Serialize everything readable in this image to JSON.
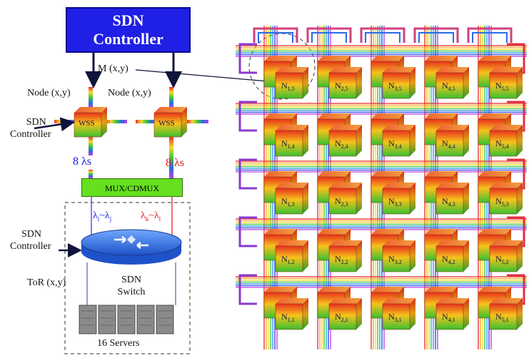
{
  "controller": {
    "line1": "SDN",
    "line2": "Controller"
  },
  "m_label": "M (x,y)",
  "node_label_left": "Node (x,y)",
  "node_label_right": "Node (x,y)",
  "side_controller": {
    "line1": "SDN",
    "line2": "Controller"
  },
  "wss_label": "WSS",
  "lambda_count_left": "8 λs",
  "lambda_count_right": "8 λs",
  "mux_label": "MUX/CDMUX",
  "lambda_range_left": "λi~λj",
  "lambda_range_right": "λk~λl",
  "rack_controller": {
    "line1": "SDN",
    "line2": "Controller"
  },
  "tor_label": "ToR (x,y)",
  "switch_label": {
    "line1": "SDN",
    "line2": "Switch"
  },
  "servers_label": "16 Servers",
  "grid": {
    "size": 5,
    "node_prefix": "N",
    "nodes": [
      [
        "1,5",
        "2,5",
        "3,5",
        "4,5",
        "5,5"
      ],
      [
        "1,4",
        "2,4",
        "3,4",
        "4,4",
        "5,4"
      ],
      [
        "1,3",
        "2,3",
        "3,3",
        "4,3",
        "5,3"
      ],
      [
        "1,2",
        "2,2",
        "3,2",
        "4,2",
        "5,2"
      ],
      [
        "1,1",
        "2,1",
        "3,1",
        "4,1",
        "5,1"
      ]
    ]
  },
  "colors": {
    "controller": "#1f1fe6",
    "mux": "#66e01e",
    "lambda_left": "#1a1ad9",
    "lambda_right": "#e01818"
  }
}
